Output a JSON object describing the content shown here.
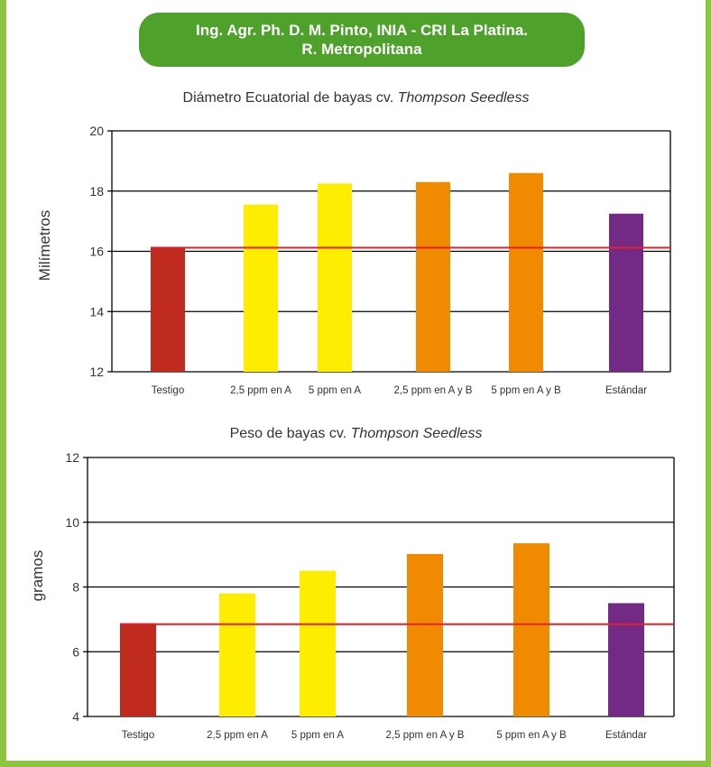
{
  "banner": {
    "line1": "Ing. Agr. Ph. D. M. Pinto, INIA - CRI La Platina.",
    "line2": "R. Metropolitana"
  },
  "chart_data": [
    {
      "type": "bar",
      "title": "Diámetro Ecuatorial de bayas cv.",
      "title_italic": "Thompson Seedless",
      "xlabel": "",
      "ylabel": "Milímetros",
      "ylim": [
        12,
        20
      ],
      "yticks": [
        12,
        14,
        16,
        18,
        20
      ],
      "categories": [
        "Testigo",
        "2,5 ppm en A",
        "5 ppm en A",
        "2,5 ppm en A y B",
        "5 ppm en A y B",
        "Estándar"
      ],
      "values": [
        16.15,
        17.55,
        18.25,
        18.3,
        18.6,
        17.25
      ],
      "colors": [
        "#bf2b1d",
        "#ffed00",
        "#ffed00",
        "#f08a00",
        "#f08a00",
        "#722a85"
      ],
      "reference_line": 16.12,
      "reference_color": "#e3202b",
      "grid": true
    },
    {
      "type": "bar",
      "title": "Peso de bayas cv.",
      "title_italic": "Thompson Seedless",
      "xlabel": "",
      "ylabel": "gramos",
      "ylim": [
        4,
        12
      ],
      "yticks": [
        4,
        6,
        8,
        10,
        12
      ],
      "categories": [
        "Testigo",
        "2,5 ppm en A",
        "5 ppm en A",
        "2,5 ppm en A y B",
        "5 ppm en A y B",
        "Estándar"
      ],
      "values": [
        6.88,
        7.8,
        8.5,
        9.02,
        9.35,
        7.5
      ],
      "colors": [
        "#bf2b1d",
        "#ffed00",
        "#ffed00",
        "#f08a00",
        "#f08a00",
        "#722a85"
      ],
      "reference_line": 6.85,
      "reference_color": "#e3202b",
      "grid": true
    }
  ]
}
